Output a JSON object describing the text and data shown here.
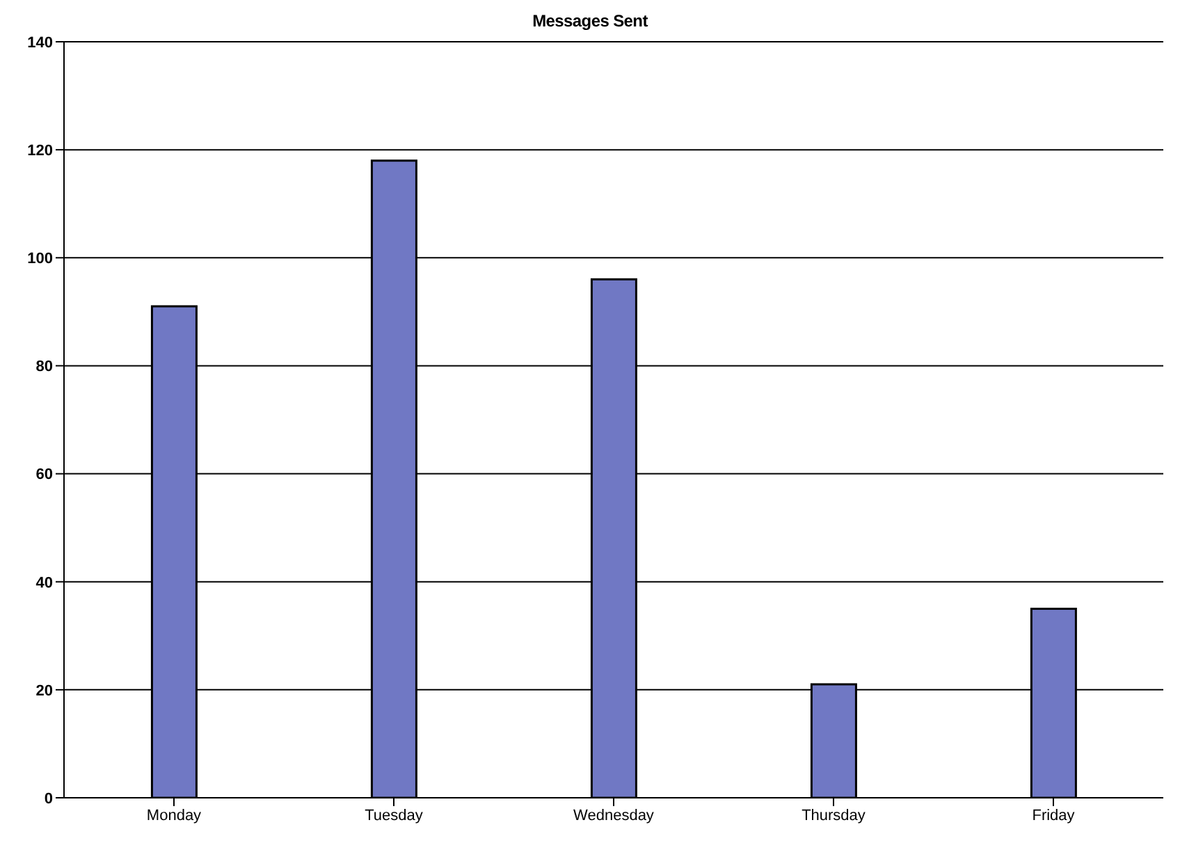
{
  "chart_data": {
    "type": "bar",
    "title": "Messages Sent",
    "categories": [
      "Monday",
      "Tuesday",
      "Wednesday",
      "Thursday",
      "Friday"
    ],
    "values": [
      91,
      118,
      96,
      21,
      35
    ],
    "color": "#7078c4",
    "ylim": [
      0,
      140
    ],
    "yticks": [
      0,
      20,
      40,
      60,
      80,
      100,
      120,
      140
    ],
    "grid": "y"
  }
}
